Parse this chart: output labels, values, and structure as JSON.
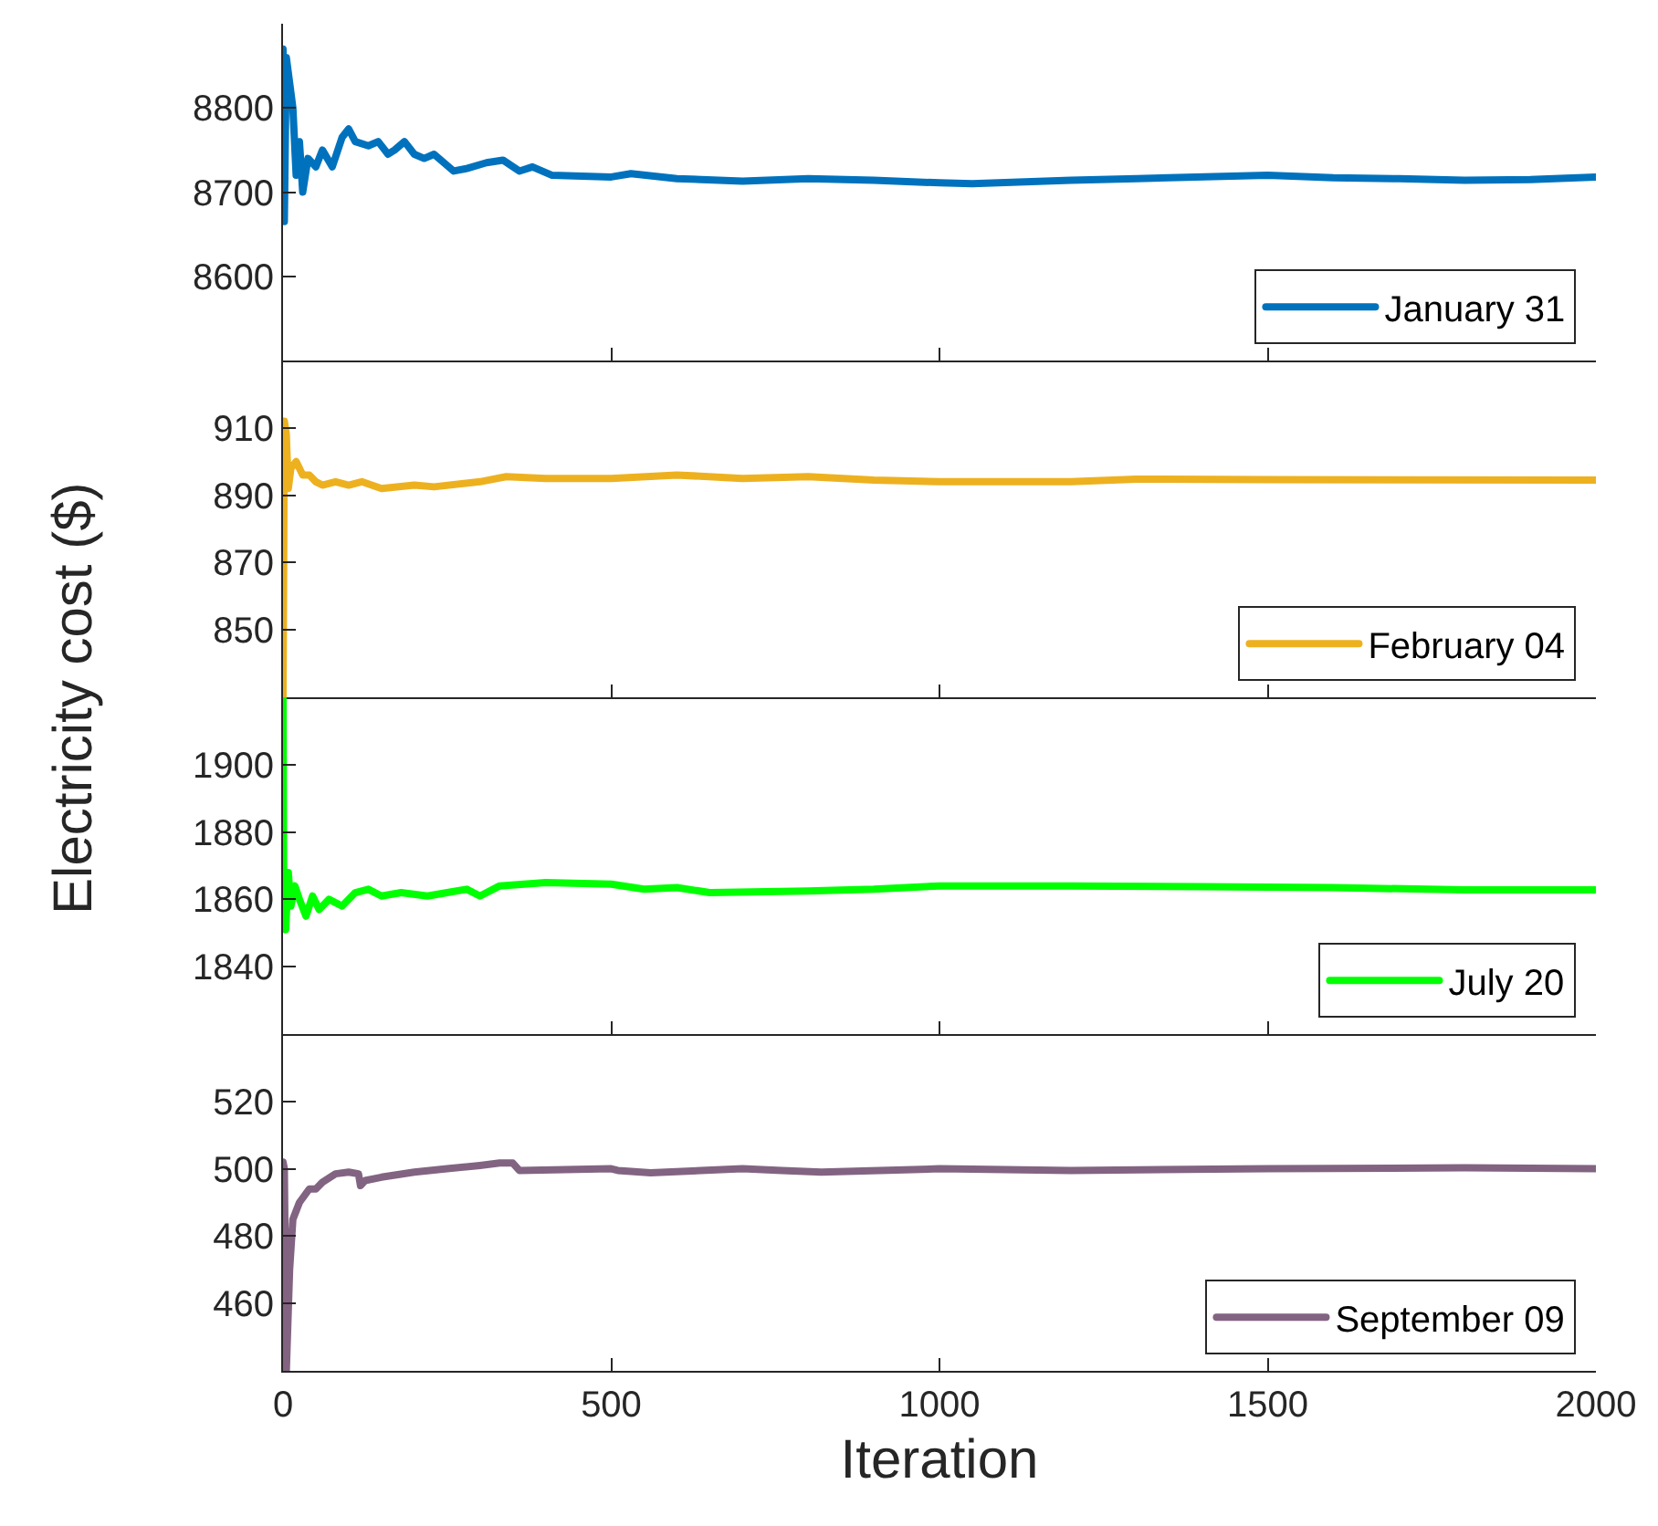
{
  "chart_data": [
    {
      "type": "line",
      "ylabel": "Electricity cost ($)",
      "legend": "bottom right",
      "tick_labels": "y",
      "xlim": [
        0,
        2000
      ],
      "xticks": [
        0,
        500,
        1000,
        1500,
        2000
      ],
      "ylim": [
        8500,
        8900
      ],
      "yticks": [
        8600,
        8700,
        8800
      ],
      "x": [
        0,
        2,
        5,
        10,
        15,
        20,
        25,
        30,
        38,
        50,
        60,
        75,
        90,
        100,
        110,
        130,
        145,
        160,
        170,
        185,
        200,
        215,
        230,
        260,
        280,
        310,
        335,
        360,
        380,
        410,
        500,
        530,
        600,
        700,
        800,
        900,
        1000,
        1050,
        1200,
        1300,
        1500,
        1600,
        1700,
        1800,
        1900,
        2000
      ],
      "series": [
        {
          "name": "January 31",
          "color": "#0072bd",
          "values": [
            8870,
            8665,
            8860,
            8830,
            8800,
            8720,
            8760,
            8700,
            8740,
            8730,
            8750,
            8730,
            8765,
            8775,
            8760,
            8755,
            8760,
            8745,
            8750,
            8760,
            8745,
            8740,
            8745,
            8725,
            8728,
            8735,
            8738,
            8725,
            8730,
            8720,
            8718,
            8722,
            8716,
            8713,
            8716,
            8714,
            8711,
            8710,
            8714,
            8716,
            8720,
            8717,
            8716,
            8714,
            8715,
            8718
          ]
        }
      ]
    },
    {
      "type": "line",
      "legend": "bottom right",
      "tick_labels": "y",
      "xlim": [
        0,
        2000
      ],
      "xticks": [
        0,
        500,
        1000,
        1500,
        2000
      ],
      "ylim": [
        830,
        930
      ],
      "yticks": [
        850,
        870,
        890,
        910
      ],
      "x": [
        0,
        2,
        5,
        8,
        12,
        20,
        30,
        40,
        50,
        60,
        80,
        100,
        120,
        150,
        200,
        230,
        300,
        340,
        400,
        500,
        600,
        700,
        800,
        900,
        1000,
        1100,
        1200,
        1300,
        1500,
        2000
      ],
      "series": [
        {
          "name": "February 04",
          "color": "#edb120",
          "values": [
            830,
            912,
            908,
            892,
            898,
            900,
            896,
            896,
            894,
            893,
            894,
            893,
            894,
            892,
            893,
            892.5,
            894,
            895.5,
            895,
            895,
            896,
            895,
            895.5,
            894.5,
            894,
            894,
            894,
            894.8,
            894.6,
            894.5
          ]
        }
      ]
    },
    {
      "type": "line",
      "legend": "bottom right",
      "tick_labels": "y",
      "xlim": [
        0,
        2000
      ],
      "xticks": [
        0,
        500,
        1000,
        1500,
        2000
      ],
      "ylim": [
        1820,
        1920
      ],
      "yticks": [
        1840,
        1860,
        1880,
        1900
      ],
      "x": [
        0,
        1,
        4,
        8,
        12,
        18,
        25,
        35,
        45,
        55,
        70,
        90,
        110,
        130,
        150,
        180,
        220,
        250,
        280,
        300,
        330,
        400,
        500,
        550,
        600,
        650,
        800,
        900,
        1000,
        1200,
        1400,
        1600,
        1800,
        2000
      ],
      "series": [
        {
          "name": "July 20",
          "color": "#00ff00",
          "values": [
            1920,
            1862,
            1851,
            1868,
            1858,
            1864,
            1860,
            1855,
            1861,
            1857,
            1860,
            1858,
            1862,
            1863,
            1861,
            1862,
            1861,
            1862,
            1863,
            1861,
            1864,
            1865,
            1864.5,
            1863,
            1863.5,
            1862,
            1862.5,
            1863,
            1864,
            1864,
            1863.8,
            1863.5,
            1862.8,
            1862.8
          ]
        }
      ]
    },
    {
      "type": "line",
      "xlabel": "Iteration",
      "legend": "bottom right",
      "xlim": [
        0,
        2000
      ],
      "xticks": [
        0,
        500,
        1000,
        1500,
        2000
      ],
      "ylim": [
        440,
        540
      ],
      "yticks": [
        460,
        480,
        500,
        520
      ],
      "x": [
        0,
        2,
        5,
        10,
        15,
        25,
        40,
        50,
        60,
        80,
        100,
        115,
        118,
        125,
        150,
        200,
        250,
        300,
        330,
        350,
        360,
        500,
        510,
        560,
        700,
        760,
        820,
        1000,
        1200,
        1500,
        1800,
        2000
      ],
      "series": [
        {
          "name": "September 09",
          "color": "#826482",
          "values": [
            502,
            500,
            440,
            470,
            485,
            490,
            494,
            494,
            496,
            498.5,
            499,
            498.5,
            495,
            496.5,
            497.5,
            499,
            500,
            501,
            501.7,
            501.7,
            499.5,
            500,
            499.5,
            498.8,
            500,
            499.5,
            499,
            500,
            499.5,
            500,
            500.3,
            500
          ]
        }
      ]
    }
  ]
}
